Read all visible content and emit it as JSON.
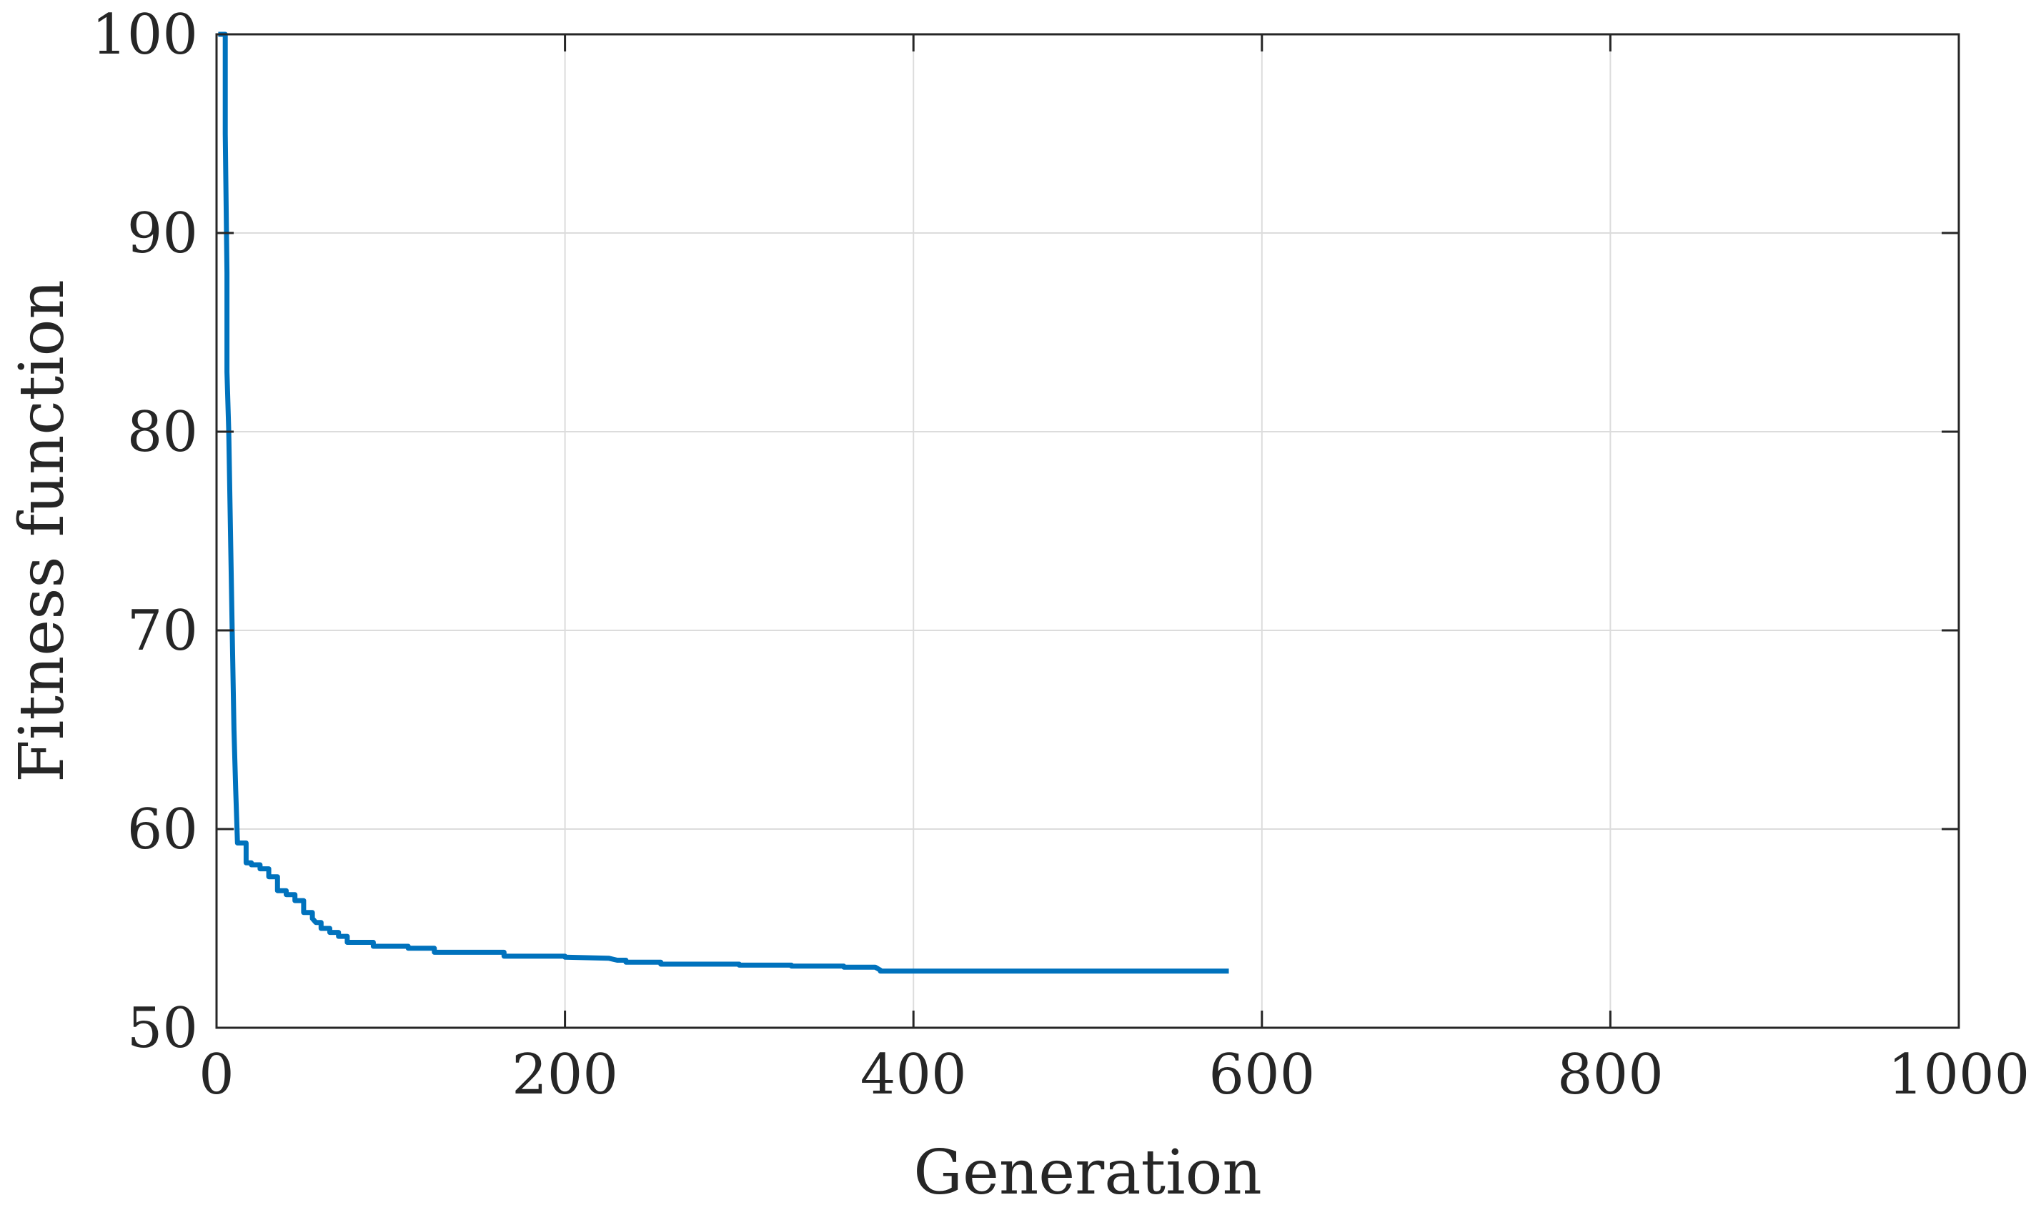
{
  "chart_data": {
    "type": "line",
    "title": "",
    "xlabel": "Generation",
    "ylabel": "Fitness function",
    "xlim": [
      0,
      1000
    ],
    "ylim": [
      50,
      100
    ],
    "xticks": [
      0,
      200,
      400,
      600,
      800,
      1000
    ],
    "yticks": [
      50,
      60,
      70,
      80,
      90,
      100
    ],
    "xtick_labels": [
      "0",
      "200",
      "400",
      "600",
      "800",
      "1000"
    ],
    "ytick_labels": [
      "50",
      "60",
      "70",
      "80",
      "90",
      "100"
    ],
    "grid": true,
    "series_color": "#0072BD",
    "series": [
      {
        "name": "Fitness",
        "x": [
          1,
          5,
          5,
          6,
          6,
          7,
          8,
          9,
          10,
          11,
          12,
          12,
          17,
          17,
          20,
          20,
          25,
          25,
          30,
          30,
          35,
          35,
          40,
          40,
          45,
          45,
          50,
          50,
          55,
          55,
          57,
          60,
          60,
          65,
          65,
          70,
          70,
          75,
          75,
          80,
          80,
          90,
          90,
          100,
          100,
          110,
          110,
          125,
          125,
          140,
          140,
          165,
          165,
          200,
          200,
          225,
          230,
          235,
          235,
          255,
          255,
          300,
          300,
          330,
          330,
          360,
          360,
          378,
          381,
          381,
          450,
          520,
          581
        ],
        "y": [
          100,
          100,
          95,
          88,
          83,
          80,
          75,
          70,
          65,
          62,
          59.3,
          59.3,
          59.3,
          58.3,
          58.3,
          58.2,
          58.2,
          58.0,
          58.0,
          57.6,
          57.6,
          56.9,
          56.9,
          56.7,
          56.7,
          56.4,
          56.4,
          55.8,
          55.8,
          55.5,
          55.3,
          55.3,
          55.0,
          55.0,
          54.8,
          54.8,
          54.6,
          54.6,
          54.3,
          54.3,
          54.3,
          54.3,
          54.1,
          54.1,
          54.1,
          54.1,
          54.0,
          54.0,
          53.8,
          53.8,
          53.8,
          53.8,
          53.6,
          53.6,
          53.55,
          53.5,
          53.4,
          53.4,
          53.3,
          53.3,
          53.2,
          53.2,
          53.15,
          53.15,
          53.1,
          53.1,
          53.05,
          53.05,
          52.9,
          52.85,
          52.85,
          52.85,
          52.85
        ]
      }
    ]
  }
}
